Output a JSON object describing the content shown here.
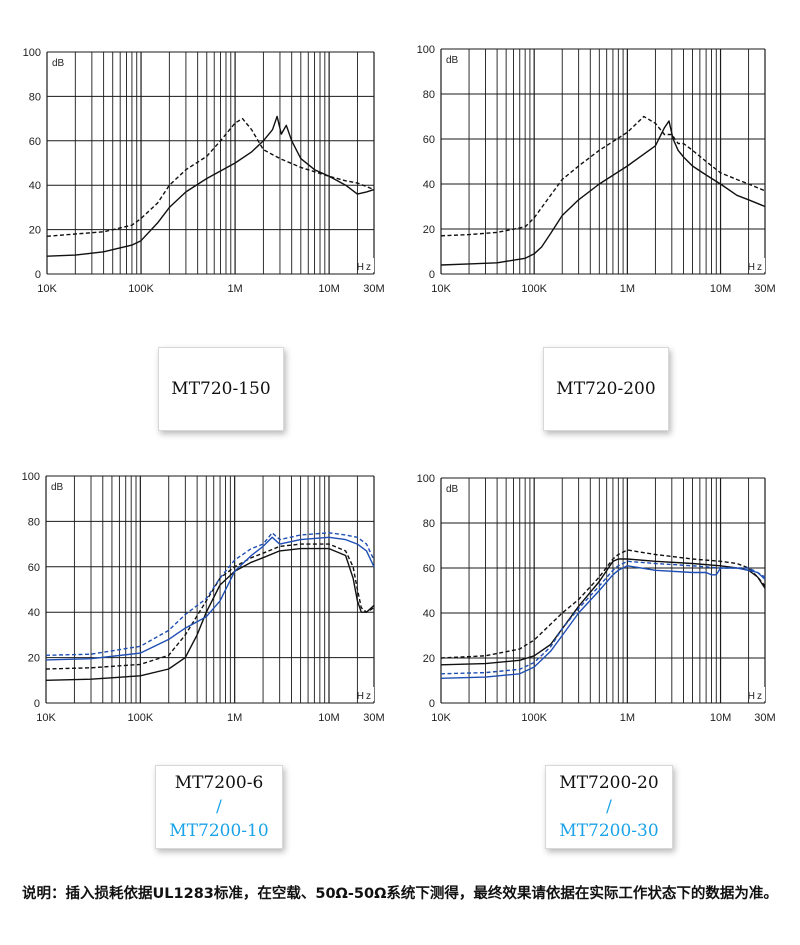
{
  "common": {
    "y_ticks": [
      "0",
      "20",
      "40",
      "60",
      "80",
      "100"
    ],
    "x_ticks": [
      "10K",
      "100K",
      "1M",
      "10M",
      "30M"
    ],
    "unit_y": "dB",
    "unit_x": "Hz"
  },
  "labels": {
    "mt720_150": "MT720-150",
    "mt720_200": "MT720-200",
    "mt7200_6": "MT7200-6",
    "mt7200_10": "MT7200-10",
    "mt7200_20": "MT7200-20",
    "mt7200_30": "MT7200-30",
    "slash": "/"
  },
  "note": "说明：插入损耗依据UL1283标准，在空载、50Ω-50Ω系统下测得，最终效果请依据在实际工作状态下的数据为准。",
  "colors": {
    "black": "#111111",
    "blue": "#1f4fb4",
    "blue_light": "#1aa3e8"
  },
  "chart_data": [
    {
      "type": "line",
      "title": "",
      "xscale": "log",
      "xlim": [
        "10K",
        "30M"
      ],
      "ylim": [
        0,
        100
      ],
      "xlabel": "Hz",
      "ylabel": "dB",
      "grid": true,
      "series": [
        {
          "style": "solid",
          "color": "#111111",
          "x": [
            10000,
            20000,
            40000,
            80000,
            100000,
            150000,
            200000,
            300000,
            500000,
            1000000,
            1500000,
            2000000,
            2500000,
            2800000,
            3100000,
            3500000,
            4000000,
            5000000,
            7000000,
            10000000,
            15000000,
            20000000,
            25000000,
            30000000
          ],
          "y": [
            8,
            8.5,
            10,
            13,
            15,
            23,
            30,
            37,
            43,
            50,
            55,
            60,
            65,
            71,
            63,
            67,
            60,
            52,
            47,
            44,
            40,
            36,
            37,
            38
          ]
        },
        {
          "style": "dashed",
          "color": "#111111",
          "x": [
            10000,
            20000,
            40000,
            80000,
            100000,
            150000,
            200000,
            300000,
            500000,
            700000,
            1000000,
            1200000,
            1500000,
            2000000,
            3000000,
            5000000,
            10000000,
            15000000,
            20000000,
            30000000
          ],
          "y": [
            17,
            18,
            19,
            22,
            25,
            32,
            40,
            47,
            53,
            60,
            68,
            70,
            65,
            56,
            52,
            48,
            44,
            42,
            41,
            38
          ]
        }
      ]
    },
    {
      "type": "line",
      "title": "",
      "xscale": "log",
      "xlim": [
        "10K",
        "30M"
      ],
      "ylim": [
        0,
        100
      ],
      "xlabel": "Hz",
      "ylabel": "dB",
      "grid": true,
      "series": [
        {
          "style": "solid",
          "color": "#111111",
          "x": [
            10000,
            20000,
            40000,
            80000,
            100000,
            120000,
            150000,
            200000,
            300000,
            500000,
            1000000,
            2000000,
            2500000,
            2800000,
            3100000,
            3500000,
            4000000,
            5000000,
            7000000,
            10000000,
            15000000,
            20000000,
            30000000
          ],
          "y": [
            4,
            4.5,
            5,
            7,
            9,
            12,
            18,
            26,
            33,
            40,
            48,
            57,
            65,
            68,
            60,
            55,
            52,
            48,
            44,
            40,
            35,
            33,
            30
          ]
        },
        {
          "style": "dashed",
          "color": "#111111",
          "x": [
            10000,
            20000,
            40000,
            80000,
            100000,
            150000,
            200000,
            300000,
            500000,
            1000000,
            1500000,
            2000000,
            2500000,
            3000000,
            3500000,
            4000000,
            5000000,
            7000000,
            10000000,
            15000000,
            20000000,
            30000000
          ],
          "y": [
            17,
            17.5,
            18.5,
            21,
            25,
            35,
            42,
            48,
            55,
            63,
            70,
            67,
            62,
            62,
            58,
            58,
            55,
            50,
            45,
            42,
            40,
            37
          ]
        }
      ]
    },
    {
      "type": "line",
      "title": "",
      "xscale": "log",
      "xlim": [
        "10K",
        "30M"
      ],
      "ylim": [
        0,
        100
      ],
      "xlabel": "Hz",
      "ylabel": "dB",
      "grid": true,
      "series": [
        {
          "style": "solid",
          "color": "#111111",
          "x": [
            10000,
            30000,
            100000,
            200000,
            300000,
            400000,
            500000,
            700000,
            1000000,
            1500000,
            2000000,
            3000000,
            5000000,
            10000000,
            15000000,
            18000000,
            20000000,
            22000000,
            25000000,
            30000000
          ],
          "y": [
            10,
            10.5,
            12,
            15,
            20,
            30,
            40,
            52,
            58,
            62,
            64,
            67,
            68,
            68,
            65,
            55,
            45,
            40,
            40,
            43
          ]
        },
        {
          "style": "dashed",
          "color": "#111111",
          "x": [
            10000,
            30000,
            100000,
            200000,
            300000,
            500000,
            700000,
            1000000,
            1500000,
            2000000,
            3000000,
            5000000,
            10000000,
            15000000,
            18000000,
            20000000,
            22000000,
            25000000,
            30000000
          ],
          "y": [
            15,
            15.5,
            17,
            21,
            30,
            45,
            55,
            60,
            64,
            66,
            69,
            70,
            70,
            67,
            60,
            50,
            42,
            40,
            42
          ]
        },
        {
          "style": "solid",
          "color": "#1f4fb4",
          "x": [
            10000,
            30000,
            100000,
            200000,
            300000,
            500000,
            700000,
            1000000,
            1500000,
            2000000,
            2500000,
            3000000,
            5000000,
            10000000,
            15000000,
            20000000,
            25000000,
            30000000
          ],
          "y": [
            19,
            19.5,
            22,
            28,
            33,
            38,
            45,
            58,
            65,
            69,
            73,
            70,
            72,
            73,
            72,
            70,
            67,
            60
          ]
        },
        {
          "style": "dashed",
          "color": "#1f4fb4",
          "x": [
            10000,
            30000,
            100000,
            200000,
            300000,
            500000,
            700000,
            1000000,
            1500000,
            2000000,
            2500000,
            3000000,
            5000000,
            10000000,
            15000000,
            20000000,
            25000000,
            30000000
          ],
          "y": [
            21,
            21.5,
            25,
            32,
            39,
            46,
            55,
            63,
            68,
            70,
            75,
            72,
            74,
            75,
            74,
            73,
            70,
            63
          ]
        }
      ]
    },
    {
      "type": "line",
      "title": "",
      "xscale": "log",
      "xlim": [
        "10K",
        "30M"
      ],
      "ylim": [
        0,
        100
      ],
      "xlabel": "Hz",
      "ylabel": "dB",
      "grid": true,
      "series": [
        {
          "style": "solid",
          "color": "#111111",
          "x": [
            10000,
            30000,
            70000,
            100000,
            150000,
            200000,
            300000,
            500000,
            700000,
            800000,
            1000000,
            2000000,
            5000000,
            10000000,
            15000000,
            20000000,
            25000000,
            30000000
          ],
          "y": [
            17,
            17.5,
            19,
            21,
            26,
            33,
            43,
            54,
            63,
            64,
            64,
            63,
            62,
            61,
            60,
            59,
            56,
            51
          ]
        },
        {
          "style": "dashed",
          "color": "#111111",
          "x": [
            10000,
            30000,
            70000,
            100000,
            150000,
            200000,
            300000,
            500000,
            700000,
            800000,
            1000000,
            2000000,
            5000000,
            10000000,
            15000000,
            20000000,
            25000000,
            30000000
          ],
          "y": [
            20,
            21,
            24,
            28,
            35,
            40,
            46,
            56,
            64,
            66,
            68,
            66,
            64,
            63,
            62,
            60,
            56,
            52
          ]
        },
        {
          "style": "solid",
          "color": "#1f4fb4",
          "x": [
            10000,
            30000,
            70000,
            100000,
            150000,
            200000,
            300000,
            500000,
            700000,
            800000,
            1000000,
            2000000,
            5000000,
            7000000,
            8000000,
            9000000,
            10000000,
            15000000,
            20000000,
            25000000,
            30000000
          ],
          "y": [
            11,
            11.5,
            13,
            16,
            23,
            30,
            40,
            50,
            57,
            59,
            61,
            59,
            58,
            58,
            57,
            57,
            60,
            60,
            59,
            58,
            55
          ]
        },
        {
          "style": "dashed",
          "color": "#1f4fb4",
          "x": [
            10000,
            30000,
            70000,
            100000,
            150000,
            200000,
            300000,
            500000,
            700000,
            800000,
            1000000,
            2000000,
            5000000,
            10000000,
            15000000,
            20000000,
            25000000,
            30000000
          ],
          "y": [
            13,
            13.5,
            15,
            18,
            25,
            33,
            42,
            52,
            59,
            61,
            63,
            62,
            61,
            60,
            60,
            60,
            58,
            56
          ]
        }
      ]
    }
  ]
}
